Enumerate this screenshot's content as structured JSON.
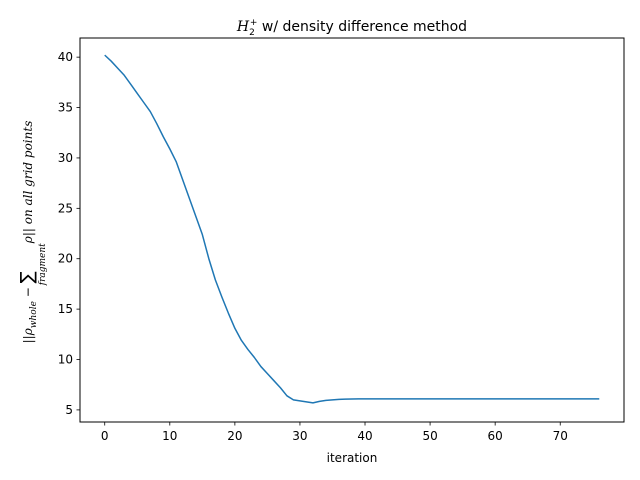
{
  "chart_data": {
    "type": "line",
    "title_parts": {
      "symbol": "H",
      "sub": "2",
      "sup": "+",
      "rest": "  w/ density difference method"
    },
    "xlabel": "iteration",
    "ylabel_parts": {
      "a": "||ρ",
      "a_sub": "whole",
      "b": " − ",
      "sum": "∑",
      "sum_sub": "fragment",
      "c": "ρ|| on all grid points"
    },
    "xlim": [
      -3.8,
      79.8
    ],
    "ylim": [
      3.8,
      41.9
    ],
    "xticks": [
      0,
      10,
      20,
      30,
      40,
      50,
      60,
      70
    ],
    "yticks": [
      5,
      10,
      15,
      20,
      25,
      30,
      35,
      40
    ],
    "line_color": "#1f77b4",
    "series": [
      {
        "x": [
          0,
          1,
          2,
          3,
          4,
          5,
          6,
          7,
          8,
          9,
          10,
          11,
          12,
          13,
          14,
          15,
          16,
          17,
          18,
          19,
          20,
          21,
          22,
          23,
          24,
          25,
          26,
          27,
          28,
          29,
          30,
          31,
          32,
          33,
          34,
          35,
          36,
          37,
          38,
          39,
          40,
          41,
          42,
          43,
          44,
          45,
          46,
          47,
          48,
          49,
          50,
          51,
          52,
          53,
          54,
          55,
          56,
          57,
          58,
          59,
          60,
          61,
          62,
          63,
          64,
          65,
          66,
          67,
          68,
          69,
          70,
          71,
          72,
          73,
          74,
          75,
          76
        ],
        "y": [
          40.2,
          39.6,
          38.9,
          38.2,
          37.3,
          36.4,
          35.5,
          34.6,
          33.4,
          32.1,
          30.9,
          29.6,
          27.8,
          26.0,
          24.2,
          22.4,
          20.0,
          17.9,
          16.2,
          14.6,
          13.1,
          11.9,
          11.0,
          10.2,
          9.3,
          8.6,
          7.9,
          7.2,
          6.4,
          6.0,
          5.9,
          5.8,
          5.7,
          5.85,
          5.95,
          6.0,
          6.05,
          6.07,
          6.08,
          6.09,
          6.1,
          6.1,
          6.1,
          6.1,
          6.1,
          6.1,
          6.1,
          6.1,
          6.1,
          6.1,
          6.1,
          6.1,
          6.1,
          6.1,
          6.1,
          6.1,
          6.1,
          6.1,
          6.1,
          6.1,
          6.1,
          6.1,
          6.1,
          6.1,
          6.1,
          6.1,
          6.1,
          6.1,
          6.1,
          6.1,
          6.1,
          6.1,
          6.1,
          6.1,
          6.1,
          6.1,
          6.1
        ]
      }
    ],
    "grid": false,
    "legend": "none"
  }
}
